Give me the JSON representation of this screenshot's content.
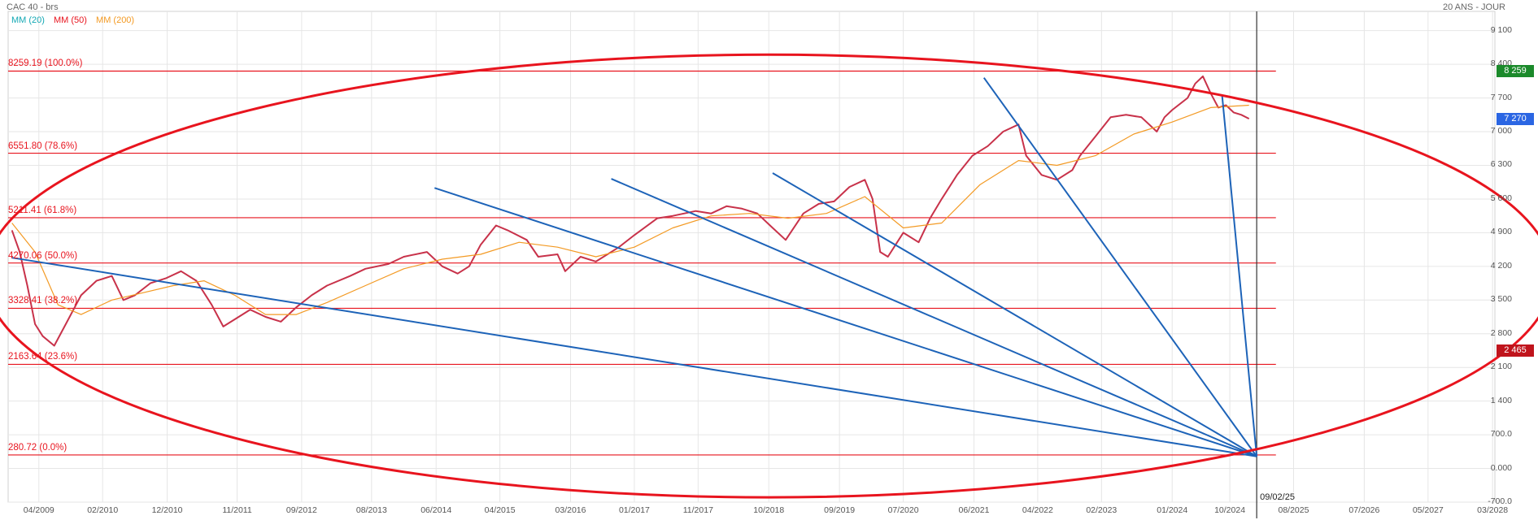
{
  "header": {
    "title": "CAC 40 - brs",
    "period": "20 ANS - JOUR"
  },
  "legend": [
    {
      "label": "MM (20)",
      "color": "#13a8b4"
    },
    {
      "label": "MM (50)",
      "color": "#e8141e"
    },
    {
      "label": "MM (200)",
      "color": "#f39a24"
    }
  ],
  "chart_data": {
    "type": "line",
    "ylim": [
      -700,
      9500
    ],
    "y_ticks": [
      -700,
      0,
      700,
      1400,
      2100,
      2800,
      3500,
      4200,
      4900,
      5600,
      6300,
      7000,
      7700,
      8400,
      9100
    ],
    "y_tick_labels": [
      "-700.0",
      "0.000",
      "700.0",
      "1 400",
      "2 100",
      "2 800",
      "3 500",
      "4 200",
      "4 900",
      "5 600",
      "6 300",
      "7 000",
      "7 700",
      "8 400",
      "9 100"
    ],
    "x_ticks": [
      "04/2009",
      "02/2010",
      "12/2010",
      "11/2011",
      "09/2012",
      "08/2013",
      "06/2014",
      "04/2015",
      "03/2016",
      "01/2017",
      "11/2017",
      "10/2018",
      "09/2019",
      "07/2020",
      "06/2021",
      "04/2022",
      "02/2023",
      "01/2024",
      "10/2024",
      "08/2025",
      "07/2026",
      "05/2027",
      "03/2028"
    ],
    "x_tick_positions": [
      2009.25,
      2010.08,
      2010.92,
      2011.83,
      2012.67,
      2013.58,
      2014.42,
      2015.25,
      2016.17,
      2017.0,
      2017.83,
      2018.75,
      2019.67,
      2020.5,
      2021.42,
      2022.25,
      2023.08,
      2024.0,
      2024.75,
      2025.58,
      2026.5,
      2027.33,
      2028.17
    ],
    "series": [
      {
        "name": "CAC 40",
        "color": "#c8324a",
        "x": [
          2008.9,
          2009.0,
          2009.1,
          2009.2,
          2009.3,
          2009.45,
          2009.6,
          2009.8,
          2010.0,
          2010.2,
          2010.35,
          2010.5,
          2010.7,
          2010.9,
          2011.1,
          2011.3,
          2011.5,
          2011.65,
          2011.8,
          2012.0,
          2012.2,
          2012.4,
          2012.6,
          2012.8,
          2013.0,
          2013.3,
          2013.5,
          2013.8,
          2014.0,
          2014.3,
          2014.5,
          2014.7,
          2014.85,
          2015.0,
          2015.2,
          2015.35,
          2015.6,
          2015.75,
          2016.0,
          2016.1,
          2016.3,
          2016.5,
          2016.8,
          2017.0,
          2017.3,
          2017.5,
          2017.8,
          2018.0,
          2018.2,
          2018.4,
          2018.6,
          2018.8,
          2018.97,
          2019.2,
          2019.4,
          2019.6,
          2019.8,
          2020.0,
          2020.1,
          2020.2,
          2020.3,
          2020.5,
          2020.7,
          2020.85,
          2021.0,
          2021.2,
          2021.4,
          2021.6,
          2021.8,
          2022.0,
          2022.1,
          2022.3,
          2022.5,
          2022.7,
          2022.8,
          2023.0,
          2023.2,
          2023.4,
          2023.6,
          2023.8,
          2023.9,
          2024.0,
          2024.2,
          2024.3,
          2024.4,
          2024.5,
          2024.6,
          2024.7,
          2024.8,
          2024.9,
          2025.0
        ],
        "values": [
          4950,
          4500,
          3800,
          3000,
          2750,
          2550,
          3000,
          3600,
          3900,
          4000,
          3500,
          3600,
          3850,
          3950,
          4100,
          3900,
          3400,
          2950,
          3100,
          3300,
          3150,
          3050,
          3350,
          3600,
          3800,
          4000,
          4150,
          4250,
          4400,
          4500,
          4200,
          4050,
          4200,
          4650,
          5050,
          4950,
          4750,
          4400,
          4450,
          4100,
          4400,
          4300,
          4600,
          4850,
          5200,
          5250,
          5350,
          5300,
          5450,
          5400,
          5300,
          5000,
          4750,
          5300,
          5500,
          5550,
          5850,
          6000,
          5600,
          4500,
          4400,
          4900,
          4700,
          5200,
          5600,
          6100,
          6500,
          6700,
          7000,
          7150,
          6500,
          6100,
          6000,
          6200,
          6500,
          6900,
          7300,
          7350,
          7300,
          7000,
          7300,
          7450,
          7700,
          8000,
          8150,
          7800,
          7500,
          7550,
          7400,
          7350,
          7270
        ]
      },
      {
        "name": "MM (200)",
        "color": "#f39a24",
        "x": [
          2008.9,
          2009.2,
          2009.5,
          2009.8,
          2010.2,
          2010.6,
          2011.0,
          2011.4,
          2011.8,
          2012.2,
          2012.6,
          2013.0,
          2013.5,
          2014.0,
          2014.5,
          2015.0,
          2015.5,
          2016.0,
          2016.5,
          2017.0,
          2017.5,
          2018.0,
          2018.5,
          2019.0,
          2019.5,
          2020.0,
          2020.5,
          2021.0,
          2021.5,
          2022.0,
          2022.5,
          2023.0,
          2023.5,
          2024.0,
          2024.5,
          2025.0
        ],
        "values": [
          5100,
          4500,
          3400,
          3200,
          3500,
          3650,
          3800,
          3900,
          3600,
          3200,
          3200,
          3450,
          3800,
          4150,
          4350,
          4450,
          4700,
          4600,
          4400,
          4600,
          5000,
          5250,
          5300,
          5200,
          5300,
          5650,
          5000,
          5100,
          5900,
          6400,
          6300,
          6500,
          6950,
          7200,
          7500,
          7550
        ]
      }
    ],
    "fib_levels": [
      {
        "value": 8259.19,
        "label": "8259.19  (100.0%)"
      },
      {
        "value": 6551.8,
        "label": "6551.80  (78.6%)"
      },
      {
        "value": 5211.41,
        "label": "5211.41  (61.8%)"
      },
      {
        "value": 4270.06,
        "label": "4270.06  (50.0%)"
      },
      {
        "value": 3328.41,
        "label": "3328.41  (38.2%)"
      },
      {
        "value": 2163.64,
        "label": "2163.64  (23.6%)"
      },
      {
        "value": 280.72,
        "label": "280.72  (0.0%)"
      }
    ],
    "fib_color": "#e8141e",
    "fan_apex": {
      "x": 2025.1,
      "y": 250
    },
    "fan_lines": [
      {
        "x": 2008.9,
        "y": 4380
      },
      {
        "x": 2014.4,
        "y": 5830
      },
      {
        "x": 2016.7,
        "y": 6020
      },
      {
        "x": 2018.8,
        "y": 6140
      },
      {
        "x": 2021.55,
        "y": 8120
      },
      {
        "x": 2024.65,
        "y": 7750
      }
    ],
    "fan_color": "#1d63b8",
    "ellipse": {
      "cx": 2018.75,
      "cy": 4000,
      "rx": 10.2,
      "ry": 4600
    },
    "ellipse_color": "#e8141e",
    "vertical_marker": {
      "x": 2025.1,
      "label": "09/02/25"
    },
    "price_tags": [
      {
        "value": 8259,
        "label": "8 259",
        "color": "#1b8a2b"
      },
      {
        "value": 7270,
        "label": "7 270",
        "color": "#2b66e3"
      },
      {
        "value": 2465,
        "label": "2 465",
        "color": "#c0141c"
      }
    ],
    "grid": true
  }
}
